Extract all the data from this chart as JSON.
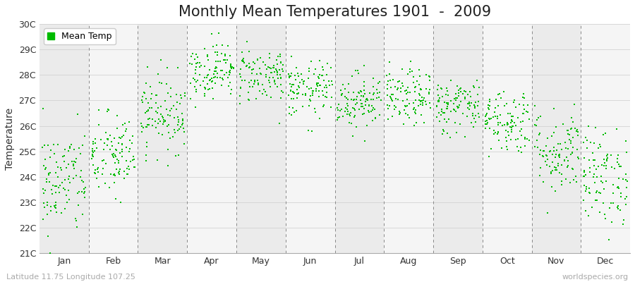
{
  "title": "Monthly Mean Temperatures 1901  -  2009",
  "ylabel": "Temperature",
  "ylim": [
    21,
    30
  ],
  "ytick_labels": [
    "21C",
    "22C",
    "23C",
    "24C",
    "25C",
    "26C",
    "27C",
    "28C",
    "29C",
    "30C"
  ],
  "ytick_values": [
    21,
    22,
    23,
    24,
    25,
    26,
    27,
    28,
    29,
    30
  ],
  "months": [
    "Jan",
    "Feb",
    "Mar",
    "Apr",
    "May",
    "Jun",
    "Jul",
    "Aug",
    "Sep",
    "Oct",
    "Nov",
    "Dec"
  ],
  "month_means": [
    23.8,
    24.8,
    26.5,
    28.2,
    28.0,
    27.4,
    27.0,
    27.1,
    26.8,
    26.2,
    25.0,
    24.0
  ],
  "month_stds": [
    1.05,
    0.85,
    0.75,
    0.55,
    0.55,
    0.55,
    0.55,
    0.55,
    0.55,
    0.65,
    0.85,
    0.95
  ],
  "n_years": 109,
  "seed": 42,
  "dot_color": "#00bb00",
  "dot_size": 4,
  "fig_bg_color": "#ffffff",
  "plot_bg_odd": "#ebebeb",
  "plot_bg_even": "#f5f5f5",
  "dashed_line_color": "#888888",
  "legend_label": "Mean Temp",
  "footer_left": "Latitude 11.75 Longitude 107.25",
  "footer_right": "worldspecies.org",
  "title_fontsize": 15,
  "axis_label_fontsize": 10,
  "tick_fontsize": 9,
  "footer_fontsize": 8,
  "legend_fontsize": 9
}
